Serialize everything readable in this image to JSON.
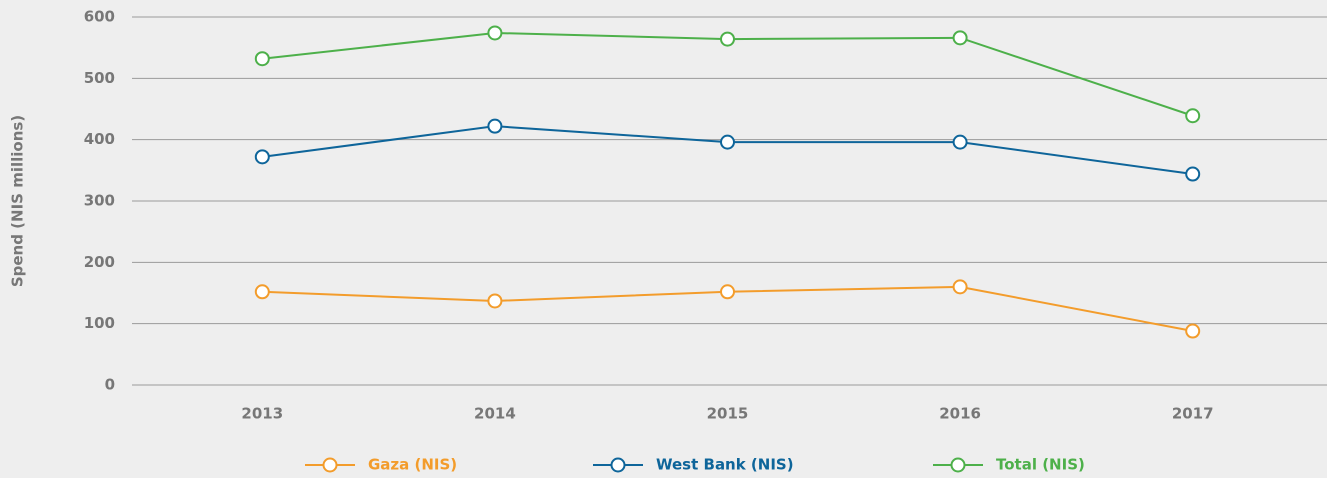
{
  "chart_data": {
    "type": "line",
    "y_label": "Spend (NIS millions)",
    "categories": [
      "2013",
      "2014",
      "2015",
      "2016",
      "2017"
    ],
    "series": [
      {
        "name": "Gaza (NIS)",
        "color": "#f39c2b",
        "values": [
          152,
          137,
          152,
          160,
          88
        ]
      },
      {
        "name": "West Bank (NIS)",
        "color": "#0e659a",
        "values": [
          372,
          422,
          396,
          396,
          344
        ]
      },
      {
        "name": "Total (NIS)",
        "color": "#4db04a",
        "values": [
          532,
          574,
          564,
          566,
          439
        ]
      }
    ],
    "ylim": [
      0,
      600
    ],
    "yticks": [
      0,
      100,
      200,
      300,
      400,
      500,
      600
    ],
    "grid": true
  }
}
